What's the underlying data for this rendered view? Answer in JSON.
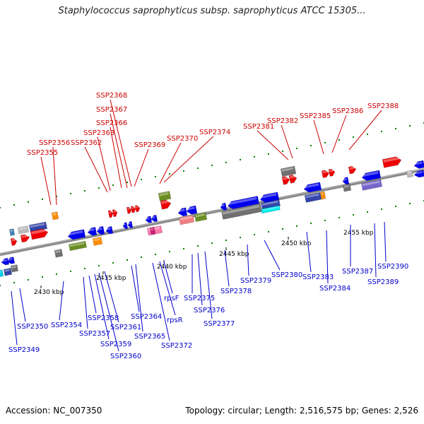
{
  "title": "Staphylococcus saprophyticus subsp. saprophyticus ATCC 15305...",
  "footer": {
    "accession": "Accession: NC_007350",
    "summary": "Topology: circular; Length: 2,516,575 bp; Genes: 2,526"
  },
  "colors": {
    "forward_label": "#cc0000",
    "reverse_label": "#0000cc",
    "forward_gene": "#ee0000",
    "reverse_gene": "#0000ee",
    "backbone": "#888888",
    "tick": "#008000"
  },
  "scale_labels": [
    "2430 kbp",
    "2435 kbp",
    "2440 kbp",
    "2445 kbp",
    "2450 kbp",
    "2455 kbp"
  ],
  "forward_genes": [
    "SSP2355",
    "SSP2356",
    "SSP2362",
    "SSP2363",
    "SSP2366",
    "SSP2367",
    "SSP2368",
    "SSP2369",
    "SSP2370",
    "SSP2374",
    "SSP2381",
    "SSP2382",
    "SSP2385",
    "SSP2386",
    "SSP2388"
  ],
  "reverse_genes": [
    "SSP2349",
    "SSP2350",
    "SSP2354",
    "SSP2357",
    "SSP2358",
    "SSP2359",
    "SSP2360",
    "SSP2361",
    "SSP2364",
    "SSP2365",
    "rpsR",
    "SSP2372",
    "rpsF",
    "SSP2375",
    "SSP2376",
    "SSP2377",
    "SSP2378",
    "SSP2379",
    "SSP2380",
    "SSP2383",
    "SSP2384",
    "SSP2387",
    "SSP2389",
    "SSP2390"
  ]
}
